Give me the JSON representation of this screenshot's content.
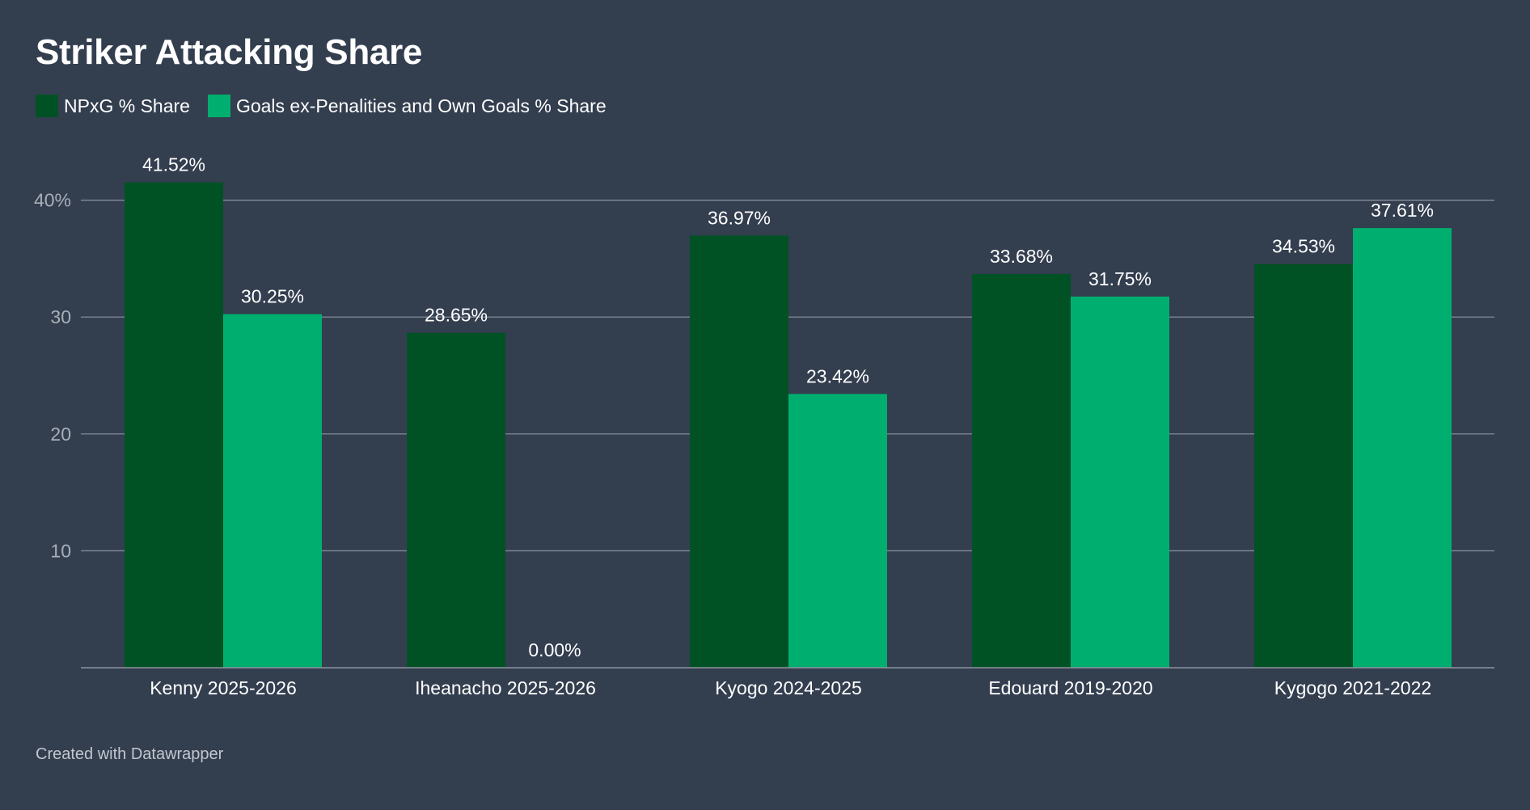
{
  "title": "Striker Attacking Share",
  "footer": "Created with Datawrapper",
  "colors": {
    "background": "#333e4f",
    "grid": "#8c939e",
    "tick_text": "#a9afb8",
    "label_text": "#ffffff",
    "npxg": "#005225",
    "goals": "#00af6f"
  },
  "chart_data": {
    "type": "bar",
    "title": "Striker Attacking Share",
    "categories": [
      "Kenny 2025-2026",
      "Iheanacho 2025-2026",
      "Kyogo 2024-2025",
      "Edouard 2019-2020",
      "Kygogo 2021-2022"
    ],
    "series": [
      {
        "name": "NPxG % Share",
        "color": "#005225",
        "values": [
          41.52,
          28.65,
          36.97,
          33.68,
          34.53
        ],
        "labels": [
          "41.52%",
          "28.65%",
          "36.97%",
          "33.68%",
          "34.53%"
        ]
      },
      {
        "name": "Goals ex-Penalities and Own Goals % Share",
        "color": "#00af6f",
        "values": [
          30.25,
          0.0,
          23.42,
          31.75,
          37.61
        ],
        "labels": [
          "30.25%",
          "0.00%",
          "23.42%",
          "31.75%",
          "37.61%"
        ]
      }
    ],
    "yticks": [
      {
        "value": 10,
        "label": "10"
      },
      {
        "value": 20,
        "label": "20"
      },
      {
        "value": 30,
        "label": "30"
      },
      {
        "value": 40,
        "label": "40%"
      }
    ],
    "ylim": [
      0,
      40
    ],
    "grid": true,
    "legend_position": "top-left",
    "xlabel": "",
    "ylabel": ""
  }
}
